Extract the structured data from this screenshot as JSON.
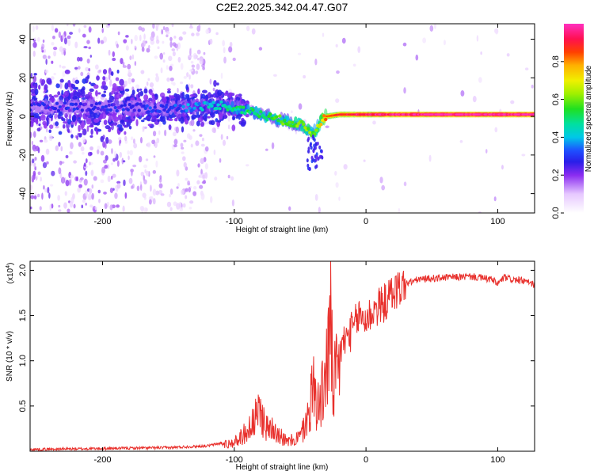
{
  "title": "C2E2.2025.342.04.47.G07",
  "chart_data": [
    {
      "type": "heatmap",
      "xlabel": "Height of straight line (km)",
      "ylabel": "Frequency (Hz)",
      "xlim": [
        -255,
        128
      ],
      "ylim": [
        -50,
        48
      ],
      "x_ticks": [
        -200,
        -100,
        0,
        100
      ],
      "x_tick_labels": [
        "-200",
        "-100",
        "0",
        "100"
      ],
      "y_ticks": [
        -40,
        -20,
        0,
        20,
        40
      ],
      "y_tick_labels": [
        "-40",
        "-20",
        "0",
        "20",
        "40"
      ],
      "colorbar": {
        "label": "Normalized spectral amplitude",
        "range": [
          0,
          1
        ],
        "ticks": [
          0.0,
          0.2,
          0.4,
          0.6,
          0.8
        ],
        "tick_labels": [
          "0.0",
          "0.2",
          "0.4",
          "0.6",
          "0.8"
        ],
        "colormap": "rainbow"
      },
      "ridge": {
        "x": [
          -255,
          -200,
          -150,
          -110,
          -90,
          -70,
          -50,
          -40,
          -35,
          -30,
          -20,
          0,
          50,
          100,
          128
        ],
        "y": [
          5,
          5,
          4,
          6,
          3,
          -1,
          -4,
          -9,
          -3,
          0,
          1,
          1,
          1,
          1,
          1
        ],
        "amplitude": [
          0.25,
          0.25,
          0.3,
          0.45,
          0.5,
          0.55,
          0.6,
          0.6,
          0.7,
          0.85,
          0.9,
          0.95,
          1.0,
          1.0,
          1.0
        ]
      }
    },
    {
      "type": "line",
      "xlabel": "Height of straight line (km)",
      "ylabel": "SNR (10 * v/v)",
      "y_exponent_label": "(x10",
      "y_exponent_power": "4",
      "y_exponent_close": ")",
      "xlim": [
        -255,
        128
      ],
      "ylim": [
        0,
        2.1
      ],
      "x_ticks": [
        -200,
        -100,
        0,
        100
      ],
      "x_tick_labels": [
        "-200",
        "-100",
        "0",
        "100"
      ],
      "y_ticks": [
        0.5,
        1.0,
        1.5,
        2.0
      ],
      "y_tick_labels": [
        "0.5",
        "1.0",
        "1.5",
        "2.0"
      ],
      "color": "#e8302c",
      "x": [
        -255,
        -200,
        -150,
        -120,
        -100,
        -90,
        -80,
        -75,
        -70,
        -60,
        -50,
        -45,
        -40,
        -35,
        -30,
        -27,
        -25,
        -22,
        -20,
        -15,
        -10,
        -5,
        0,
        5,
        10,
        15,
        20,
        30,
        40,
        60,
        80,
        95,
        100,
        105,
        110,
        120,
        128
      ],
      "y": [
        0.02,
        0.03,
        0.04,
        0.06,
        0.12,
        0.28,
        0.55,
        0.3,
        0.35,
        0.12,
        0.2,
        0.4,
        0.9,
        0.6,
        1.15,
        1.75,
        0.9,
        1.05,
        1.1,
        1.25,
        1.35,
        1.5,
        1.45,
        1.55,
        1.6,
        1.65,
        1.75,
        1.85,
        1.9,
        1.92,
        1.93,
        1.9,
        1.85,
        1.92,
        1.9,
        1.88,
        1.84
      ]
    }
  ]
}
